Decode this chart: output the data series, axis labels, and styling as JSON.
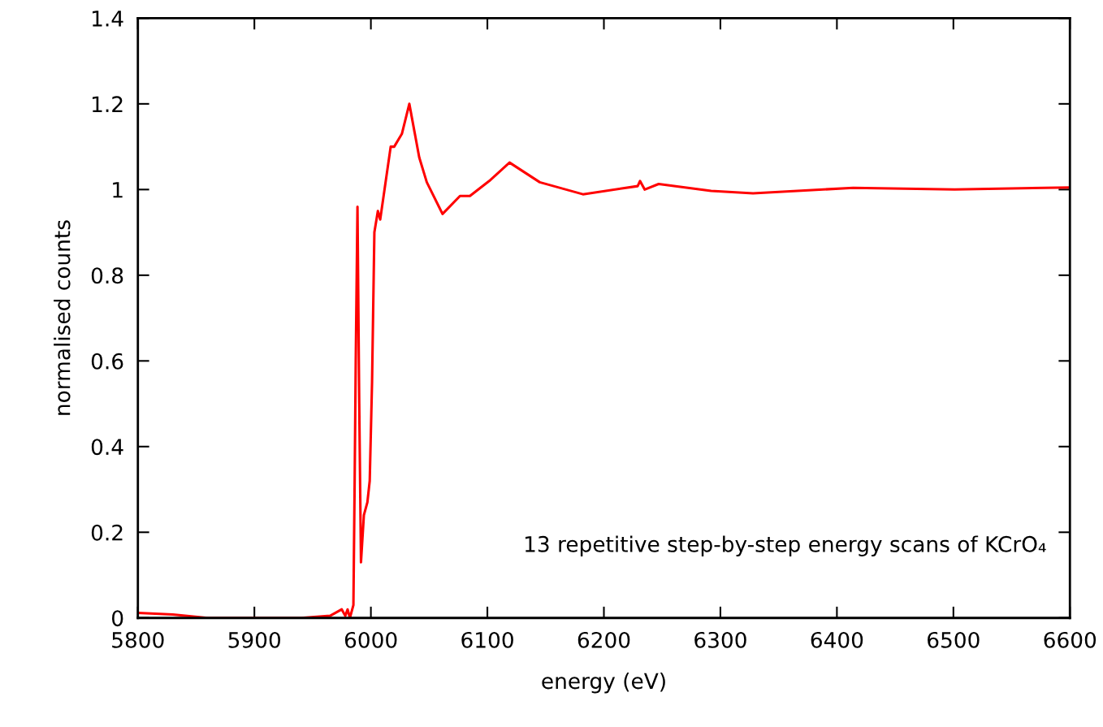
{
  "chart_data": {
    "type": "line",
    "xlabel": "energy (eV)",
    "ylabel": "normalised counts",
    "annotations": [
      "13 repetitive step-by-step energy scans of KCrO₄"
    ],
    "series": [
      {
        "color": "#ff0000",
        "x": [
          5800,
          5830,
          5860,
          5940,
          5965,
          5975,
          5978,
          5980,
          5982,
          5985,
          5986,
          5987,
          5988.5,
          5990,
          5991.5,
          5994,
          5997,
          5999,
          6001,
          6003,
          6006,
          6008,
          6017,
          6020,
          6026.6,
          6033,
          6041.5,
          6048,
          6061.5,
          6076.5,
          6085,
          6101.6,
          6119,
          6145,
          6182,
          6229,
          6231,
          6235,
          6247,
          6292,
          6328,
          6414,
          6501,
          6600
        ],
        "values": [
          0.012,
          0.008,
          0.0,
          0.0,
          0.005,
          0.02,
          0.005,
          0.02,
          0.0,
          0.03,
          0.3,
          0.6,
          0.96,
          0.5,
          0.13,
          0.24,
          0.27,
          0.32,
          0.55,
          0.9,
          0.95,
          0.93,
          1.1,
          1.1,
          1.13,
          1.2,
          1.075,
          1.017,
          0.943,
          0.985,
          0.985,
          1.02,
          1.063,
          1.017,
          0.989,
          1.008,
          1.02,
          1.0,
          1.013,
          0.997,
          0.991,
          1.004,
          1.0,
          1.005
        ]
      }
    ],
    "xlim": [
      5800,
      6600
    ],
    "xticks": [
      5800,
      5900,
      6000,
      6100,
      6200,
      6300,
      6400,
      6500,
      6600
    ],
    "ylim": [
      0,
      1.4
    ],
    "yticks": [
      0,
      {
        "value": 0.2,
        "label": "0.2"
      },
      {
        "value": 0.4,
        "label": "0.4"
      },
      {
        "value": 0.6,
        "label": "0.6"
      },
      {
        "value": 0.8,
        "label": "0.8"
      },
      1,
      {
        "value": 1.2,
        "label": "1.2"
      },
      {
        "value": 1.4,
        "label": "1.4"
      }
    ],
    "grid": false,
    "legend": false,
    "marker": "none",
    "line_style": "solid"
  }
}
